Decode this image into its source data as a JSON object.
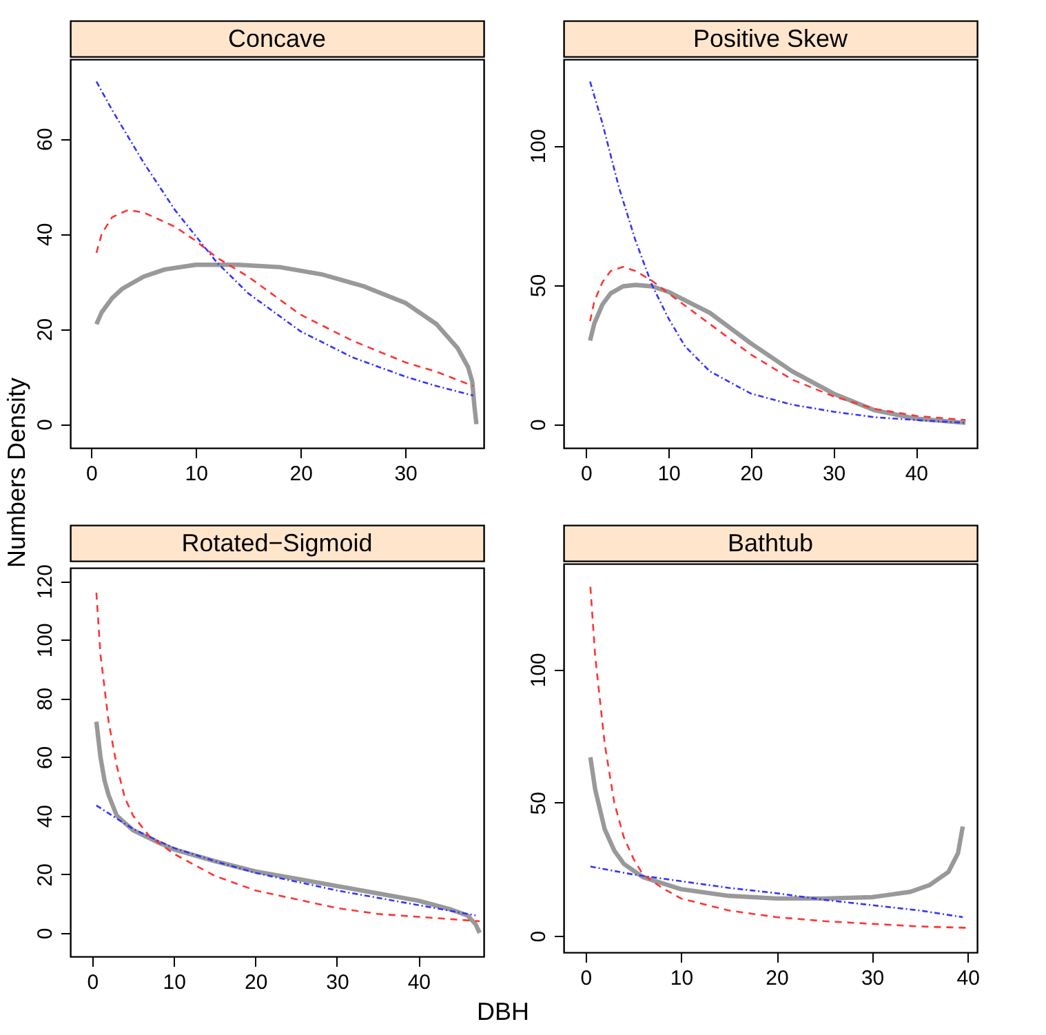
{
  "chart_data": [
    {
      "type": "line",
      "title": "Concave",
      "xlim": [
        -2,
        37.5
      ],
      "ylim": [
        -5,
        76.7
      ],
      "xticks": [
        0,
        10,
        20,
        30
      ],
      "yticks": [
        0,
        20,
        40,
        60
      ],
      "grid": false,
      "series": [
        {
          "color": "#999999",
          "line_style": "solid",
          "x": [
            0.5,
            1,
            2,
            3,
            5,
            7,
            10,
            14,
            18,
            22,
            26,
            30,
            33,
            35,
            36,
            36.4,
            36.6,
            36.8
          ],
          "values": [
            21,
            23.5,
            26.5,
            28.5,
            31,
            32.5,
            33.5,
            33.5,
            33,
            31.5,
            29,
            25.5,
            21,
            16,
            12,
            9,
            4,
            0
          ]
        },
        {
          "color": "#ff3333",
          "line_style": "dashed",
          "x": [
            0.5,
            1,
            2,
            3.5,
            5,
            8,
            10,
            12,
            15,
            20,
            25,
            30,
            33,
            36.5
          ],
          "values": [
            36,
            40,
            43.5,
            45,
            44.5,
            41.5,
            38.5,
            35,
            31,
            23,
            17.5,
            13,
            11,
            8
          ]
        },
        {
          "color": "#3333ff",
          "line_style": "dotted",
          "x": [
            0.5,
            2,
            5,
            8,
            10,
            12,
            15,
            20,
            25,
            30,
            33,
            36.5
          ],
          "values": [
            72,
            66,
            55,
            45,
            39.5,
            34,
            27.5,
            19.5,
            14,
            10,
            8,
            6
          ]
        }
      ]
    },
    {
      "type": "line",
      "title": "Positive Skew",
      "xlim": [
        -2.7,
        47.4
      ],
      "ylim": [
        -8.5,
        131
      ],
      "xticks": [
        0,
        10,
        20,
        30,
        40
      ],
      "yticks": [
        0,
        50,
        100
      ],
      "grid": false,
      "series": [
        {
          "color": "#999999",
          "line_style": "solid",
          "x": [
            0.5,
            1,
            2,
            3,
            4.5,
            6,
            8,
            10,
            15,
            20,
            25,
            30,
            35,
            40,
            46
          ],
          "values": [
            30,
            36,
            43,
            47,
            49.5,
            50,
            49.5,
            47.5,
            40,
            29,
            19,
            11,
            5,
            2,
            0.5
          ]
        },
        {
          "color": "#ff3333",
          "line_style": "dashed",
          "x": [
            0.5,
            1,
            2,
            3,
            4.5,
            6,
            8,
            10,
            15,
            20,
            25,
            30,
            35,
            40,
            46
          ],
          "values": [
            37,
            44,
            51,
            55,
            56.5,
            55,
            51.5,
            47,
            36,
            25,
            16,
            10,
            5.5,
            3,
            1.5
          ]
        },
        {
          "color": "#3333ff",
          "line_style": "dotted",
          "x": [
            0.5,
            2,
            4,
            6,
            8,
            10,
            12,
            15,
            20,
            25,
            30,
            35,
            40,
            46
          ],
          "values": [
            123,
            108,
            85,
            66,
            50,
            38,
            28,
            19,
            11,
            7,
            4.5,
            2.5,
            1.5,
            0.5
          ]
        }
      ]
    },
    {
      "type": "line",
      "title": "Rotated−Sigmoid",
      "xlabel": "DBH",
      "ylabel": "Numbers Density",
      "xlim": [
        -2.7,
        48
      ],
      "ylim": [
        -8,
        124.5
      ],
      "xticks": [
        0,
        10,
        20,
        30,
        40
      ],
      "yticks": [
        0,
        20,
        40,
        60,
        80,
        100,
        120
      ],
      "grid": false,
      "series": [
        {
          "color": "#999999",
          "line_style": "solid",
          "x": [
            0.5,
            1,
            1.5,
            2,
            3,
            5,
            8,
            10,
            15,
            20,
            25,
            30,
            35,
            40,
            44,
            46,
            47,
            47.5
          ],
          "values": [
            72,
            60,
            52,
            47,
            40,
            35,
            31,
            28.5,
            24.5,
            21,
            18.5,
            16,
            13.5,
            11,
            8,
            6,
            3,
            0
          ]
        },
        {
          "color": "#ff3333",
          "line_style": "dashed",
          "x": [
            0.5,
            1,
            2,
            3,
            4,
            5,
            7,
            10,
            15,
            20,
            25,
            30,
            35,
            40,
            47.5
          ],
          "values": [
            116,
            95,
            72,
            57,
            46,
            40,
            33,
            27,
            19.5,
            14.5,
            11.5,
            8.5,
            6.5,
            5.5,
            4
          ]
        },
        {
          "color": "#3333ff",
          "line_style": "dotted",
          "x": [
            0.5,
            3,
            5,
            8,
            10,
            15,
            20,
            25,
            30,
            35,
            40,
            47
          ],
          "values": [
            43.5,
            39,
            35.5,
            31.5,
            29,
            24.5,
            20.5,
            17.5,
            14.5,
            12,
            9.5,
            6
          ]
        }
      ]
    },
    {
      "type": "line",
      "title": "Bathtub",
      "xlim": [
        -2.3,
        41
      ],
      "ylim": [
        -6.2,
        139.7
      ],
      "xticks": [
        0,
        10,
        20,
        30,
        40
      ],
      "yticks": [
        0,
        50,
        100
      ],
      "grid": false,
      "series": [
        {
          "color": "#999999",
          "line_style": "solid",
          "x": [
            0.5,
            1,
            2,
            3,
            4,
            6,
            10,
            15,
            20,
            25,
            30,
            34,
            36,
            38,
            39,
            39.5
          ],
          "values": [
            67,
            55,
            40,
            32,
            27,
            22,
            17.5,
            15,
            14,
            14,
            14.5,
            16.5,
            19,
            24,
            31,
            41
          ]
        },
        {
          "color": "#ff3333",
          "line_style": "dashed",
          "x": [
            0.5,
            1,
            2,
            3,
            4,
            5,
            6,
            8,
            10,
            15,
            20,
            25,
            30,
            35,
            40
          ],
          "values": [
            131,
            105,
            72,
            50,
            37,
            29,
            23,
            18,
            14,
            9.5,
            7,
            5.5,
            4.5,
            3.5,
            3
          ]
        },
        {
          "color": "#3333ff",
          "line_style": "dotted",
          "x": [
            0.5,
            5,
            10,
            15,
            20,
            25,
            30,
            35,
            39.5
          ],
          "values": [
            26,
            23,
            20.5,
            18,
            16,
            13.5,
            11.5,
            9.5,
            7
          ]
        }
      ]
    }
  ]
}
